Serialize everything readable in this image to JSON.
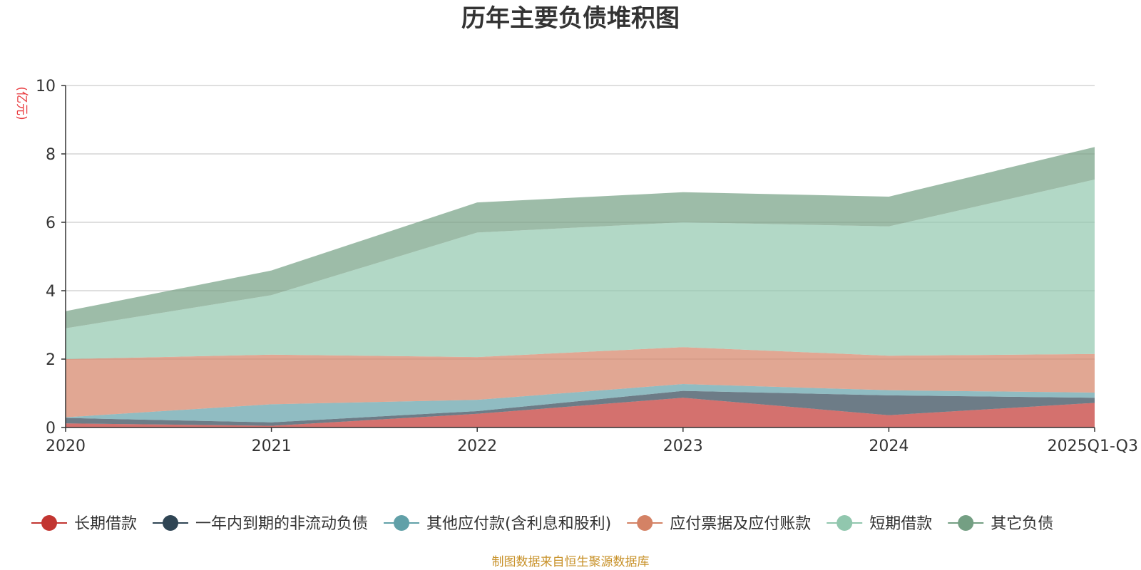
{
  "chart_data": {
    "type": "area",
    "stacked": true,
    "title": "历年主要负债堆积图",
    "unit_label": "(亿元)",
    "categories": [
      "2020",
      "2021",
      "2022",
      "2023",
      "2024",
      "2025Q1-Q3"
    ],
    "ylim": [
      0,
      10
    ],
    "yticks": [
      0,
      2,
      4,
      6,
      8,
      10
    ],
    "grid": true,
    "legend_position": "bottom",
    "series": [
      {
        "name": "长期借款",
        "color": "#c23531",
        "values": [
          0.12,
          0.05,
          0.4,
          0.87,
          0.36,
          0.72
        ]
      },
      {
        "name": "一年内到期的非流动负债",
        "color": "#2f4554",
        "values": [
          0.16,
          0.1,
          0.08,
          0.2,
          0.58,
          0.15
        ]
      },
      {
        "name": "其他应付款(含利息和股利)",
        "color": "#61a0a8",
        "values": [
          0.02,
          0.53,
          0.33,
          0.2,
          0.15,
          0.15
        ]
      },
      {
        "name": "应付票据及应付账款",
        "color": "#d48265",
        "values": [
          1.7,
          1.45,
          1.25,
          1.08,
          1.01,
          1.13
        ]
      },
      {
        "name": "短期借款",
        "color": "#91c7ae",
        "values": [
          0.9,
          1.74,
          3.64,
          3.65,
          3.78,
          5.1
        ]
      },
      {
        "name": "其它负债",
        "color": "#749f83",
        "values": [
          0.5,
          0.72,
          0.88,
          0.88,
          0.87,
          0.95
        ]
      }
    ]
  },
  "footer": {
    "source": "制图数据来自恒生聚源数据库"
  }
}
